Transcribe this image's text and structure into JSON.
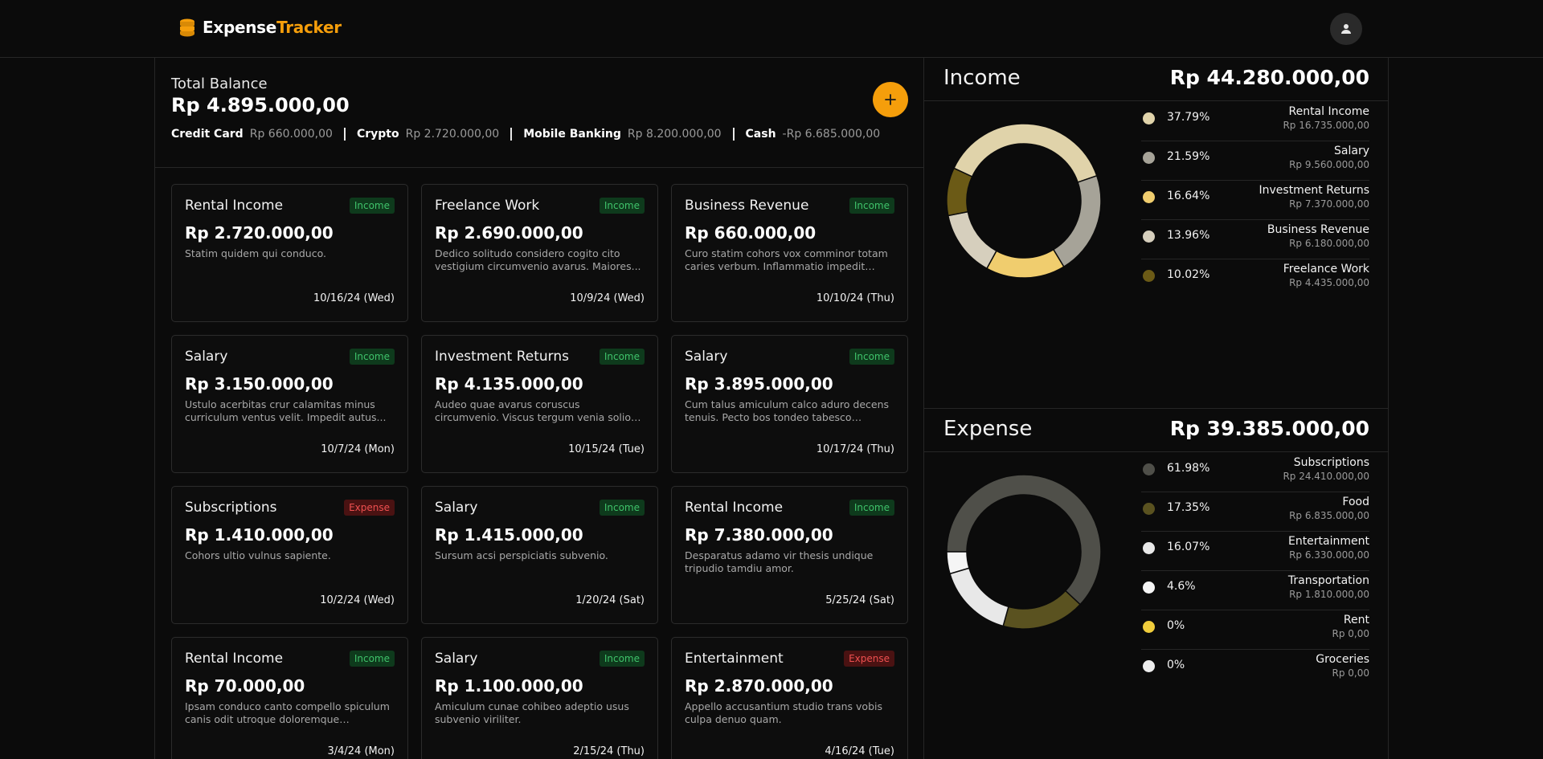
{
  "header": {
    "logo_part1": "Expense",
    "logo_part2": "Tracker",
    "icons": {
      "logo": "coins-icon",
      "avatar": "user-icon"
    }
  },
  "balance": {
    "label": "Total Balance",
    "value": "Rp 4.895.000,00",
    "add_icon": "plus-icon",
    "accounts": [
      {
        "name": "Credit Card",
        "amount": "Rp 660.000,00"
      },
      {
        "name": "Crypto",
        "amount": "Rp 2.720.000,00"
      },
      {
        "name": "Mobile Banking",
        "amount": "Rp 8.200.000,00"
      },
      {
        "name": "Cash",
        "amount": "-Rp 6.685.000,00"
      }
    ]
  },
  "transactions": [
    {
      "title": "Rental Income",
      "type": "Income",
      "amount": "Rp 2.720.000,00",
      "desc": "Statim quidem qui conduco.",
      "date": "10/16/24 (Wed)"
    },
    {
      "title": "Freelance Work",
      "type": "Income",
      "amount": "Rp 2.690.000,00",
      "desc": "Dedico solitudo considero cogito cito vestigium circumvenio avarus. Maiores...",
      "date": "10/9/24 (Wed)"
    },
    {
      "title": "Business Revenue",
      "type": "Income",
      "amount": "Rp 660.000,00",
      "desc": "Curo statim cohors vox comminor totam caries verbum. Inflammatio impedit spern...",
      "date": "10/10/24 (Thu)"
    },
    {
      "title": "Salary",
      "type": "Income",
      "amount": "Rp 3.150.000,00",
      "desc": "Ustulo acerbitas crur calamitas minus curriculum ventus velit. Impedit autus...",
      "date": "10/7/24 (Mon)"
    },
    {
      "title": "Investment Returns",
      "type": "Income",
      "amount": "Rp 4.135.000,00",
      "desc": "Audeo quae avarus coruscus circumvenio. Viscus tergum venia solio vita caute...",
      "date": "10/15/24 (Tue)"
    },
    {
      "title": "Salary",
      "type": "Income",
      "amount": "Rp 3.895.000,00",
      "desc": "Cum talus amiculum calco aduro decens tenuis. Pecto bos tondeo tabesco aperiam.",
      "date": "10/17/24 (Thu)"
    },
    {
      "title": "Subscriptions",
      "type": "Expense",
      "amount": "Rp 1.410.000,00",
      "desc": "Cohors ultio vulnus sapiente.",
      "date": "10/2/24 (Wed)"
    },
    {
      "title": "Salary",
      "type": "Income",
      "amount": "Rp 1.415.000,00",
      "desc": "Sursum acsi perspiciatis subvenio.",
      "date": "1/20/24 (Sat)"
    },
    {
      "title": "Rental Income",
      "type": "Income",
      "amount": "Rp 7.380.000,00",
      "desc": "Desparatus adamo vir thesis undique tripudio tamdiu amor.",
      "date": "5/25/24 (Sat)"
    },
    {
      "title": "Rental Income",
      "type": "Income",
      "amount": "Rp 70.000,00",
      "desc": "Ipsam conduco canto compello spiculum canis odit utroque doloremque conscendo.",
      "date": "3/4/24 (Mon)"
    },
    {
      "title": "Salary",
      "type": "Income",
      "amount": "Rp 1.100.000,00",
      "desc": "Amiculum cunae cohibeo adeptio usus subvenio viriliter.",
      "date": "2/15/24 (Thu)"
    },
    {
      "title": "Entertainment",
      "type": "Expense",
      "amount": "Rp 2.870.000,00",
      "desc": "Appello accusantium studio trans vobis culpa denuo quam.",
      "date": "4/16/24 (Tue)"
    }
  ],
  "income": {
    "title": "Income",
    "total": "Rp 44.280.000,00",
    "items": [
      {
        "pct": "37.79%",
        "name": "Rental Income",
        "amount": "Rp 16.735.000,00",
        "color": "#e0d3aa",
        "value": 37.79
      },
      {
        "pct": "21.59%",
        "name": "Salary",
        "amount": "Rp 9.560.000,00",
        "color": "#a6a398",
        "value": 21.59
      },
      {
        "pct": "16.64%",
        "name": "Investment Returns",
        "amount": "Rp 7.370.000,00",
        "color": "#f0cd6e",
        "value": 16.64
      },
      {
        "pct": "13.96%",
        "name": "Business Revenue",
        "amount": "Rp 6.180.000,00",
        "color": "#d6cfbd",
        "value": 13.96
      },
      {
        "pct": "10.02%",
        "name": "Freelance Work",
        "amount": "Rp 4.435.000,00",
        "color": "#6b5a16",
        "value": 10.02
      }
    ]
  },
  "expense": {
    "title": "Expense",
    "total": "Rp 39.385.000,00",
    "items": [
      {
        "pct": "61.98%",
        "name": "Subscriptions",
        "amount": "Rp 24.410.000,00",
        "color": "#4f4f49",
        "value": 61.98
      },
      {
        "pct": "17.35%",
        "name": "Food",
        "amount": "Rp 6.835.000,00",
        "color": "#5a5220",
        "value": 17.35
      },
      {
        "pct": "16.07%",
        "name": "Entertainment",
        "amount": "Rp 6.330.000,00",
        "color": "#e8e8e8",
        "value": 16.07
      },
      {
        "pct": "4.6%",
        "name": "Transportation",
        "amount": "Rp 1.810.000,00",
        "color": "#f5f5f5",
        "value": 4.6
      },
      {
        "pct": "0%",
        "name": "Rent",
        "amount": "Rp 0,00",
        "color": "#f0cd3c",
        "value": 0
      },
      {
        "pct": "0%",
        "name": "Groceries",
        "amount": "Rp 0,00",
        "color": "#eeeeee",
        "value": 0
      }
    ]
  }
}
